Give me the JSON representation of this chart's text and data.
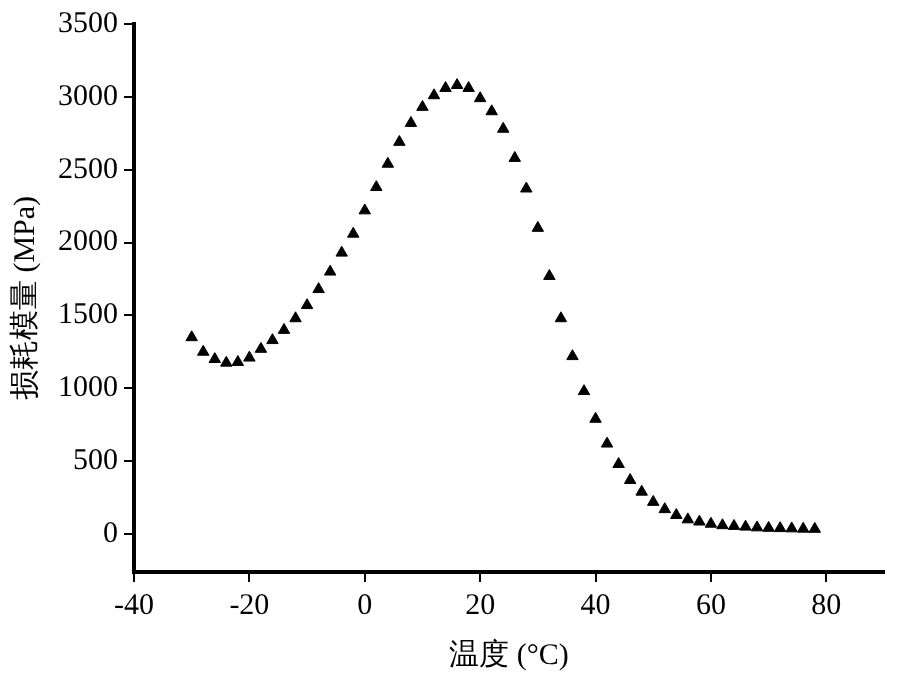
{
  "chart_data": {
    "type": "scatter",
    "xlabel": "温度 (°C)",
    "ylabel": "损耗模量 (MPa)",
    "marker": "triangle",
    "grid": false,
    "xlim": [
      -40,
      90
    ],
    "xticks": [
      -40,
      -20,
      0,
      20,
      40,
      60,
      80
    ],
    "ylim": [
      -260,
      3500
    ],
    "yticks": [
      0,
      500,
      1000,
      1500,
      2000,
      2500,
      3000,
      3500
    ],
    "series": [
      {
        "color": "#000000",
        "x": [
          -30,
          -28,
          -26,
          -24,
          -22,
          -20,
          -18,
          -16,
          -14,
          -12,
          -10,
          -8,
          -6,
          -4,
          -2,
          0,
          2,
          4,
          6,
          8,
          10,
          12,
          14,
          16,
          18,
          20,
          22,
          24,
          26,
          28,
          30,
          32,
          34,
          36,
          38,
          40,
          42,
          44,
          46,
          48,
          50,
          52,
          54,
          56,
          58,
          60,
          62,
          64,
          66,
          68,
          70,
          72,
          74,
          76,
          78
        ],
        "values": [
          1350,
          1250,
          1200,
          1175,
          1180,
          1210,
          1270,
          1330,
          1400,
          1480,
          1570,
          1680,
          1800,
          1930,
          2060,
          2220,
          2380,
          2540,
          2690,
          2820,
          2930,
          3010,
          3060,
          3080,
          3060,
          2990,
          2900,
          2780,
          2580,
          2370,
          2100,
          1770,
          1480,
          1220,
          980,
          790,
          620,
          480,
          370,
          290,
          220,
          170,
          130,
          100,
          85,
          70,
          60,
          55,
          50,
          45,
          42,
          40,
          38,
          36,
          35
        ]
      }
    ]
  }
}
